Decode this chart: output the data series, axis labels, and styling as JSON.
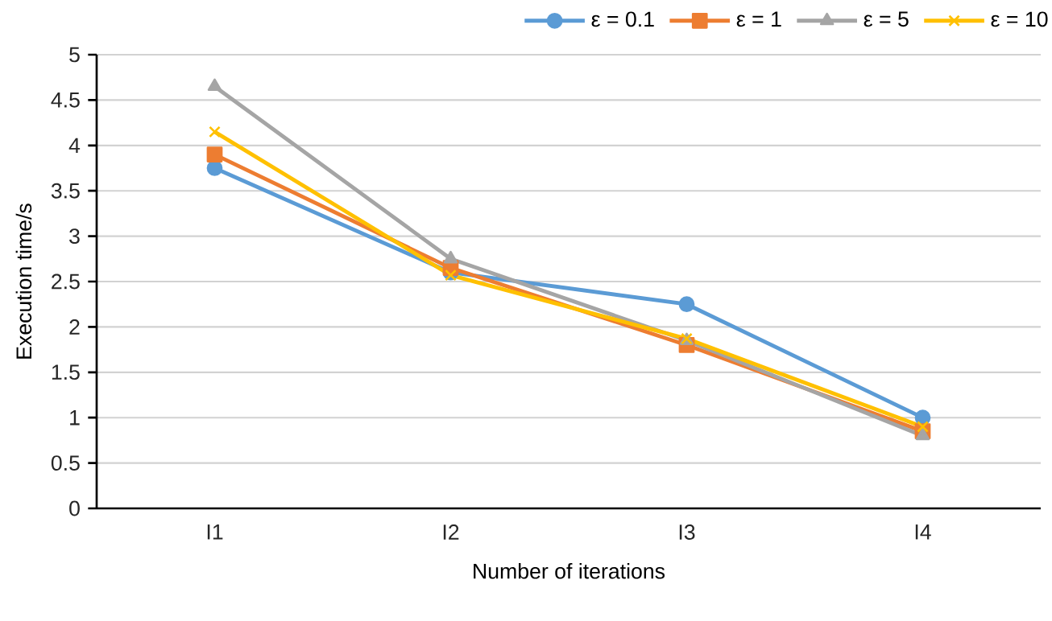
{
  "chart_data": {
    "type": "line",
    "xlabel": "Number of iterations",
    "ylabel": "Execution time/s",
    "categories": [
      "I1",
      "I2",
      "I3",
      "I4"
    ],
    "series": [
      {
        "name": "ε = 0.1",
        "color": "#5b9bd5",
        "marker": "circle",
        "values": [
          3.75,
          2.6,
          2.25,
          1.0
        ]
      },
      {
        "name": "ε = 1",
        "color": "#ed7d31",
        "marker": "square",
        "values": [
          3.9,
          2.65,
          1.8,
          0.85
        ]
      },
      {
        "name": "ε = 5",
        "color": "#a5a5a5",
        "marker": "triangle",
        "values": [
          4.65,
          2.75,
          1.85,
          0.8
        ]
      },
      {
        "name": "ε = 10",
        "color": "#ffc000",
        "marker": "cross",
        "values": [
          4.15,
          2.57,
          1.87,
          0.9
        ]
      }
    ],
    "ylim": [
      0,
      5
    ],
    "yticks": [
      0,
      0.5,
      1,
      1.5,
      2,
      2.5,
      3,
      3.5,
      4,
      4.5,
      5
    ],
    "grid": "y",
    "legend": "top right",
    "line_style": "solid"
  }
}
